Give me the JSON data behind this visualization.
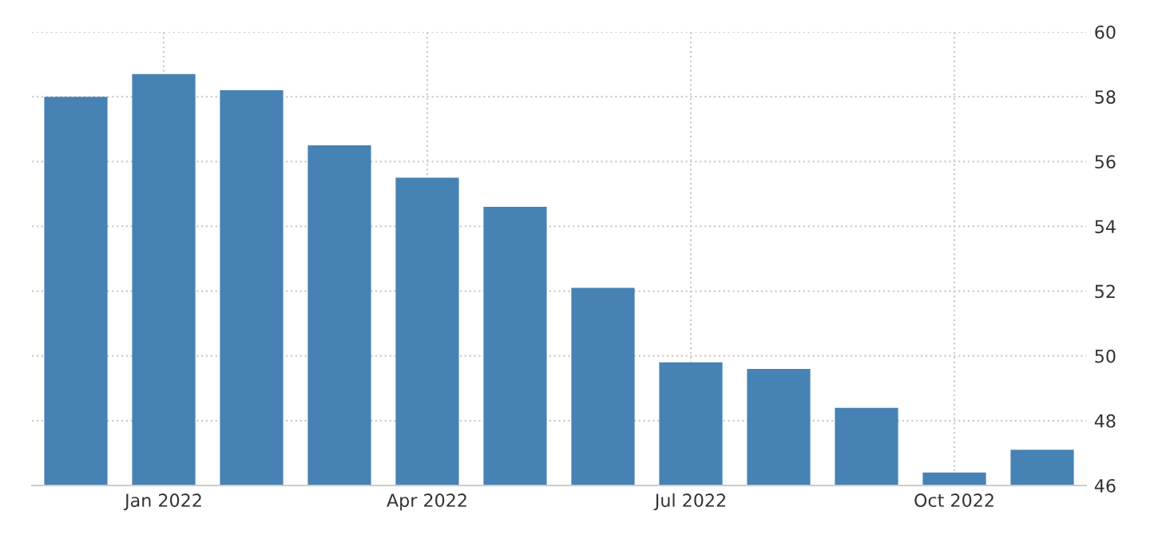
{
  "chart_data": {
    "type": "bar",
    "categories": [
      null,
      "Jan 2022",
      null,
      null,
      "Apr 2022",
      null,
      null,
      "Jul 2022",
      null,
      null,
      "Oct 2022",
      null
    ],
    "values": [
      58.0,
      58.7,
      58.2,
      56.5,
      55.5,
      54.6,
      52.1,
      49.8,
      49.6,
      48.4,
      46.4,
      47.1
    ],
    "color": "#4682b4",
    "ylim": [
      46,
      60
    ],
    "yticks": [
      46,
      48,
      50,
      52,
      54,
      56,
      58,
      60
    ],
    "grid": true
  }
}
